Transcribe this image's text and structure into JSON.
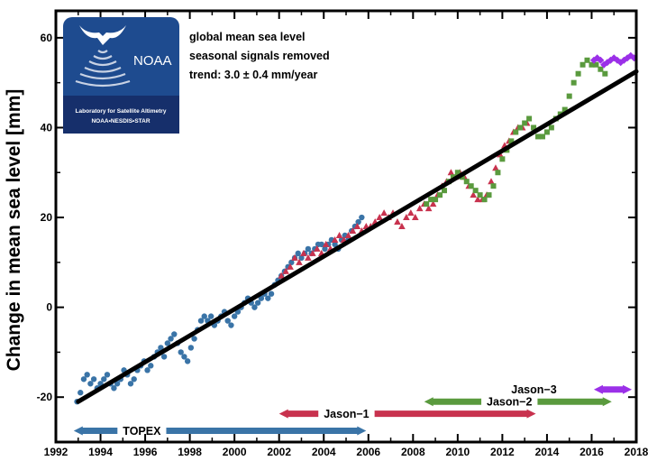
{
  "chart_data": {
    "type": "scatter",
    "ylabel": "Change in mean sea level [mm]",
    "xlabel": "",
    "xlim": [
      1992,
      2018
    ],
    "ylim": [
      -30,
      66
    ],
    "x_ticks": [
      "1992",
      "1994",
      "1996",
      "1998",
      "2000",
      "2002",
      "2004",
      "2006",
      "2008",
      "2010",
      "2012",
      "2014",
      "2016",
      "2018"
    ],
    "y_ticks": [
      "-20",
      "0",
      "20",
      "40",
      "60"
    ],
    "annotations": [
      "global mean sea level",
      "seasonal signals removed"
    ],
    "trend_text": "trend:  3.0 ± 0.4 mm/year",
    "trend_line": {
      "x": [
        1993.0,
        2018.0
      ],
      "y": [
        -21.0,
        52.5
      ],
      "color": "#000000"
    },
    "logo": {
      "name": "NOAA",
      "line1": "Laboratory for Satellite Altimetry",
      "line2": "NOAA•NESDIS•STAR"
    },
    "series": [
      {
        "name": "TOPEX",
        "color": "#3a74a7",
        "marker": "circle",
        "x": [
          1992.95,
          1993.1,
          1993.25,
          1993.4,
          1993.55,
          1993.7,
          1993.85,
          1994.0,
          1994.15,
          1994.3,
          1994.45,
          1994.6,
          1994.75,
          1994.9,
          1995.05,
          1995.2,
          1995.35,
          1995.5,
          1995.65,
          1995.8,
          1995.95,
          1996.1,
          1996.25,
          1996.4,
          1996.55,
          1996.7,
          1996.85,
          1997.0,
          1997.15,
          1997.3,
          1997.45,
          1997.6,
          1997.75,
          1997.9,
          1998.05,
          1998.2,
          1998.35,
          1998.5,
          1998.65,
          1998.8,
          1998.95,
          1999.1,
          1999.25,
          1999.4,
          1999.55,
          1999.7,
          1999.85,
          2000.0,
          2000.15,
          2000.3,
          2000.45,
          2000.6,
          2000.75,
          2000.9,
          2001.05,
          2001.2,
          2001.35,
          2001.5,
          2001.65,
          2001.8,
          2001.95,
          2002.1,
          2002.25,
          2002.4,
          2002.55,
          2002.7,
          2002.85,
          2003.0,
          2003.15,
          2003.3,
          2003.45,
          2003.6,
          2003.75,
          2003.9,
          2004.05,
          2004.2,
          2004.35,
          2004.5,
          2004.65,
          2004.8,
          2004.95,
          2005.1,
          2005.25,
          2005.4,
          2005.55,
          2005.7
        ],
        "y": [
          -21,
          -19,
          -16,
          -15,
          -17,
          -16,
          -18,
          -17,
          -16,
          -15,
          -17,
          -18,
          -17,
          -16,
          -14,
          -15,
          -17,
          -16,
          -14,
          -13,
          -12,
          -14,
          -13,
          -11,
          -10,
          -9,
          -11,
          -8,
          -7,
          -6,
          -8,
          -10,
          -11,
          -12,
          -9,
          -7,
          -5,
          -3,
          -2,
          -3,
          -2,
          -4,
          -3,
          -2,
          -1,
          -3,
          -4,
          -2,
          -1,
          0,
          1,
          2,
          1,
          0,
          1,
          2,
          3,
          2,
          3,
          5,
          6,
          7,
          8,
          9,
          10,
          11,
          12,
          11,
          12,
          13,
          12,
          13,
          14,
          14,
          13,
          14,
          15,
          14,
          13,
          15,
          16,
          15,
          17,
          18,
          19,
          20
        ]
      },
      {
        "name": "Jason−1",
        "color": "#c8324e",
        "marker": "triangle",
        "x": [
          2002.1,
          2002.3,
          2002.5,
          2002.7,
          2002.9,
          2003.1,
          2003.3,
          2003.5,
          2003.7,
          2003.9,
          2004.1,
          2004.3,
          2004.5,
          2004.7,
          2004.9,
          2005.1,
          2005.3,
          2005.5,
          2005.7,
          2005.9,
          2006.1,
          2006.3,
          2006.5,
          2006.7,
          2006.9,
          2007.1,
          2007.3,
          2007.5,
          2007.7,
          2007.9,
          2008.1,
          2008.3,
          2008.5,
          2008.7,
          2008.9,
          2009.1,
          2009.3,
          2009.5,
          2009.7,
          2009.9,
          2010.1,
          2010.3,
          2010.5,
          2010.7,
          2010.9,
          2011.1,
          2011.3,
          2011.5,
          2011.7,
          2011.9,
          2012.1,
          2012.3,
          2012.5,
          2012.7,
          2012.9,
          2013.1
        ],
        "y": [
          7,
          8,
          9,
          11,
          10,
          12,
          11,
          12,
          13,
          12,
          14,
          13,
          15,
          16,
          15,
          16,
          17,
          18,
          17,
          18,
          18,
          19,
          20,
          21,
          20,
          21,
          19,
          18,
          20,
          21,
          20,
          22,
          23,
          22,
          23,
          25,
          27,
          28,
          30,
          29,
          30,
          29,
          27,
          25,
          24,
          24,
          25,
          28,
          31,
          34,
          36,
          37,
          39,
          40,
          40,
          41
        ]
      },
      {
        "name": "Jason−2",
        "color": "#5a9a3e",
        "marker": "square",
        "x": [
          2008.6,
          2008.8,
          2009.0,
          2009.2,
          2009.4,
          2009.6,
          2009.8,
          2010.0,
          2010.2,
          2010.4,
          2010.6,
          2010.8,
          2011.0,
          2011.2,
          2011.4,
          2011.6,
          2011.8,
          2012.0,
          2012.2,
          2012.4,
          2012.6,
          2012.8,
          2013.0,
          2013.2,
          2013.4,
          2013.6,
          2013.8,
          2014.0,
          2014.2,
          2014.4,
          2014.6,
          2014.8,
          2015.0,
          2015.2,
          2015.4,
          2015.6,
          2015.8,
          2016.0,
          2016.2,
          2016.4,
          2016.6
        ],
        "y": [
          23,
          24,
          24,
          25,
          26,
          28,
          29,
          30,
          29,
          28,
          27,
          26,
          25,
          24,
          25,
          27,
          30,
          33,
          35,
          37,
          39,
          40,
          41,
          42,
          40,
          38,
          38,
          39,
          40,
          42,
          43,
          44,
          47,
          50,
          52,
          54,
          55,
          54,
          54,
          53,
          52
        ]
      },
      {
        "name": "Jason−3",
        "color": "#9b30e8",
        "marker": "diamond",
        "x": [
          2016.1,
          2016.25,
          2016.4,
          2016.55,
          2016.7,
          2016.85,
          2017.0,
          2017.15,
          2017.3,
          2017.45,
          2017.6,
          2017.75,
          2017.9
        ],
        "y": [
          55,
          55.5,
          55,
          54,
          54.5,
          55,
          55.5,
          55,
          54.5,
          55,
          55.5,
          56,
          55.5
        ]
      }
    ],
    "mission_bars": [
      {
        "name": "TOPEX",
        "label": "TOPEX",
        "color": "#3a74a7",
        "start": 1992.8,
        "end": 2005.9,
        "y": -27.5,
        "label_x": 1995.0
      },
      {
        "name": "Jason−1",
        "label": "Jason−1",
        "color": "#c8324e",
        "start": 2002.0,
        "end": 2013.5,
        "y": -23.7,
        "label_x": 2004.0
      },
      {
        "name": "Jason−2",
        "label": "Jason−2",
        "color": "#5a9a3e",
        "start": 2008.5,
        "end": 2016.9,
        "y": -21.0,
        "label_x": 2011.3
      },
      {
        "name": "Jason−3",
        "label": "Jason−3",
        "color": "#9b30e8",
        "start": 2016.1,
        "end": 2017.8,
        "y": -18.3,
        "label_x": 2012.4
      }
    ]
  }
}
